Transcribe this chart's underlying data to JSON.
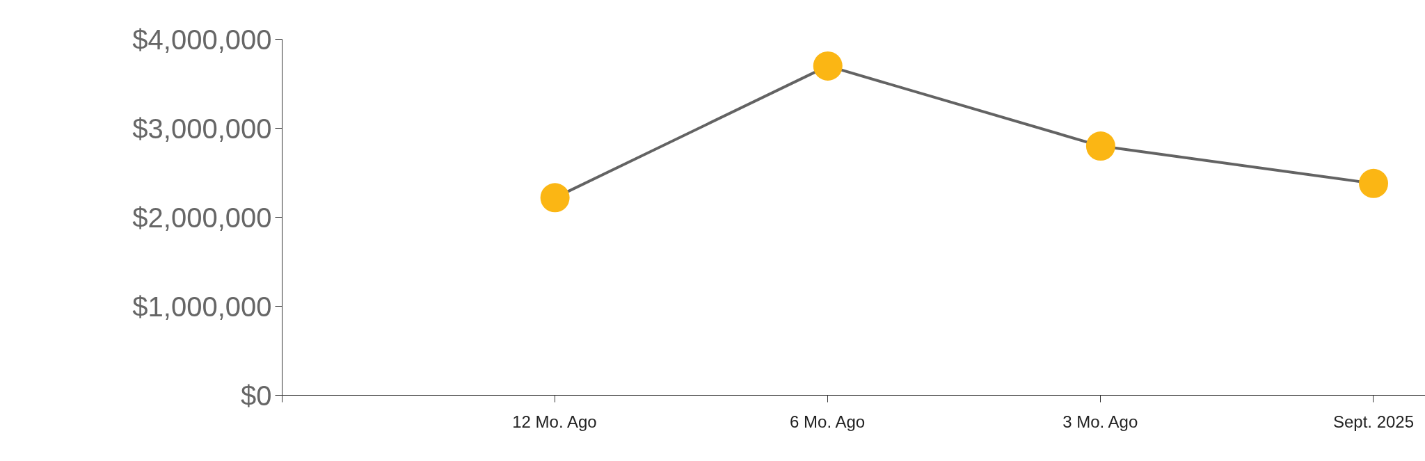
{
  "chart_data": {
    "type": "line",
    "categories": [
      null,
      "12 Mo. Ago",
      "6 Mo. Ago",
      "3 Mo. Ago",
      "Sept. 2025"
    ],
    "series": [
      {
        "color": "#636363",
        "colors": [
          null,
          "#fbb614",
          "#fbb614",
          "#fbb614",
          "#fbb614"
        ],
        "values": [
          null,
          2220000,
          3700000,
          2800000,
          2380000
        ]
      }
    ],
    "ylim": [
      0,
      4000000
    ],
    "yticks": [
      {
        "value": 0,
        "label": "$0"
      },
      {
        "value": 1000000,
        "label": "$1,000,000"
      },
      {
        "value": 2000000,
        "label": "$2,000,000"
      },
      {
        "value": 3000000,
        "label": "$3,000,000"
      },
      {
        "value": 4000000,
        "label": "$4,000,000"
      }
    ],
    "marker": "circle",
    "line_style": "solid",
    "grid": false
  }
}
